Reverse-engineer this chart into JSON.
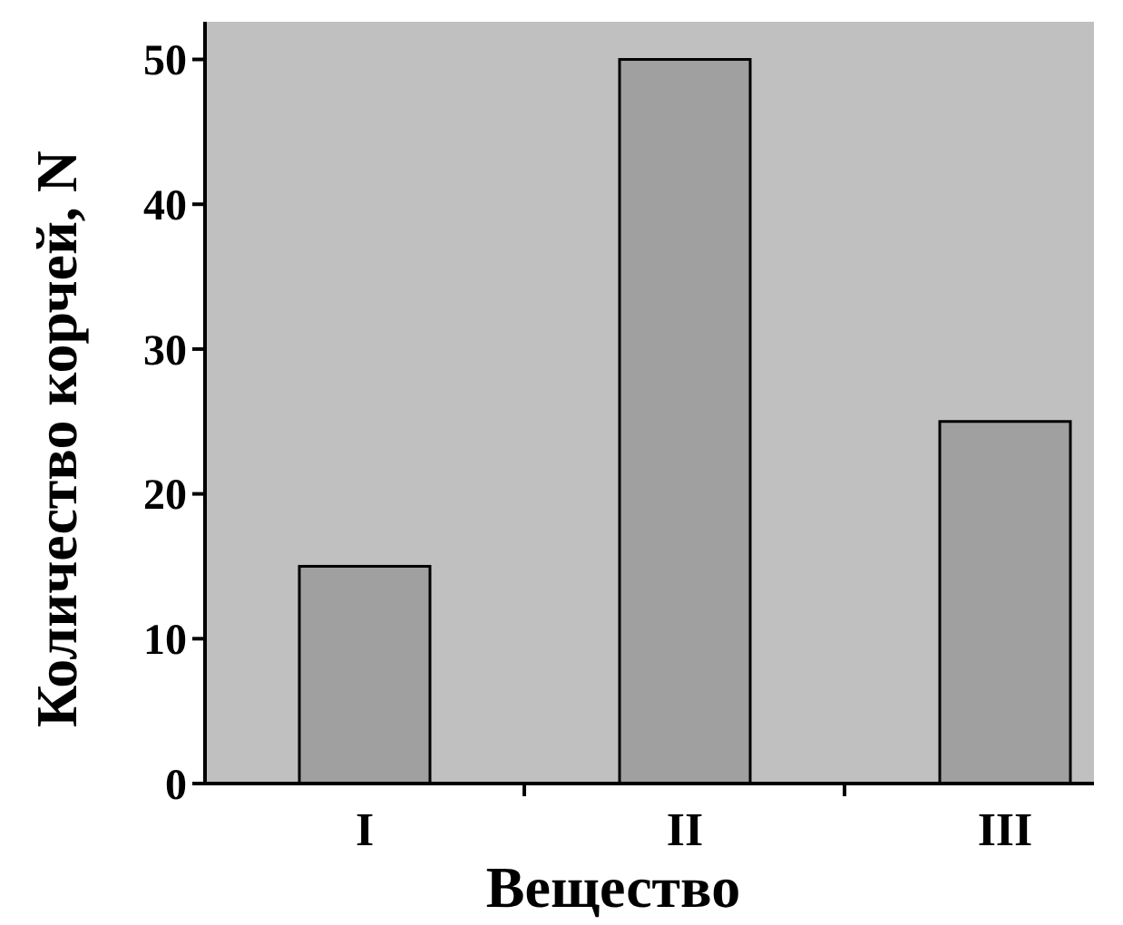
{
  "chart_data": {
    "type": "bar",
    "xlabel": "Вещество",
    "ylabel": "Количество корчей, N",
    "categories": [
      "I",
      "II",
      "III"
    ],
    "values": [
      15,
      50,
      25
    ],
    "color": "#a0a0a0",
    "ylim": [
      0,
      52.6
    ],
    "yticks": [
      0,
      10,
      20,
      30,
      40,
      50
    ],
    "grid": false
  }
}
